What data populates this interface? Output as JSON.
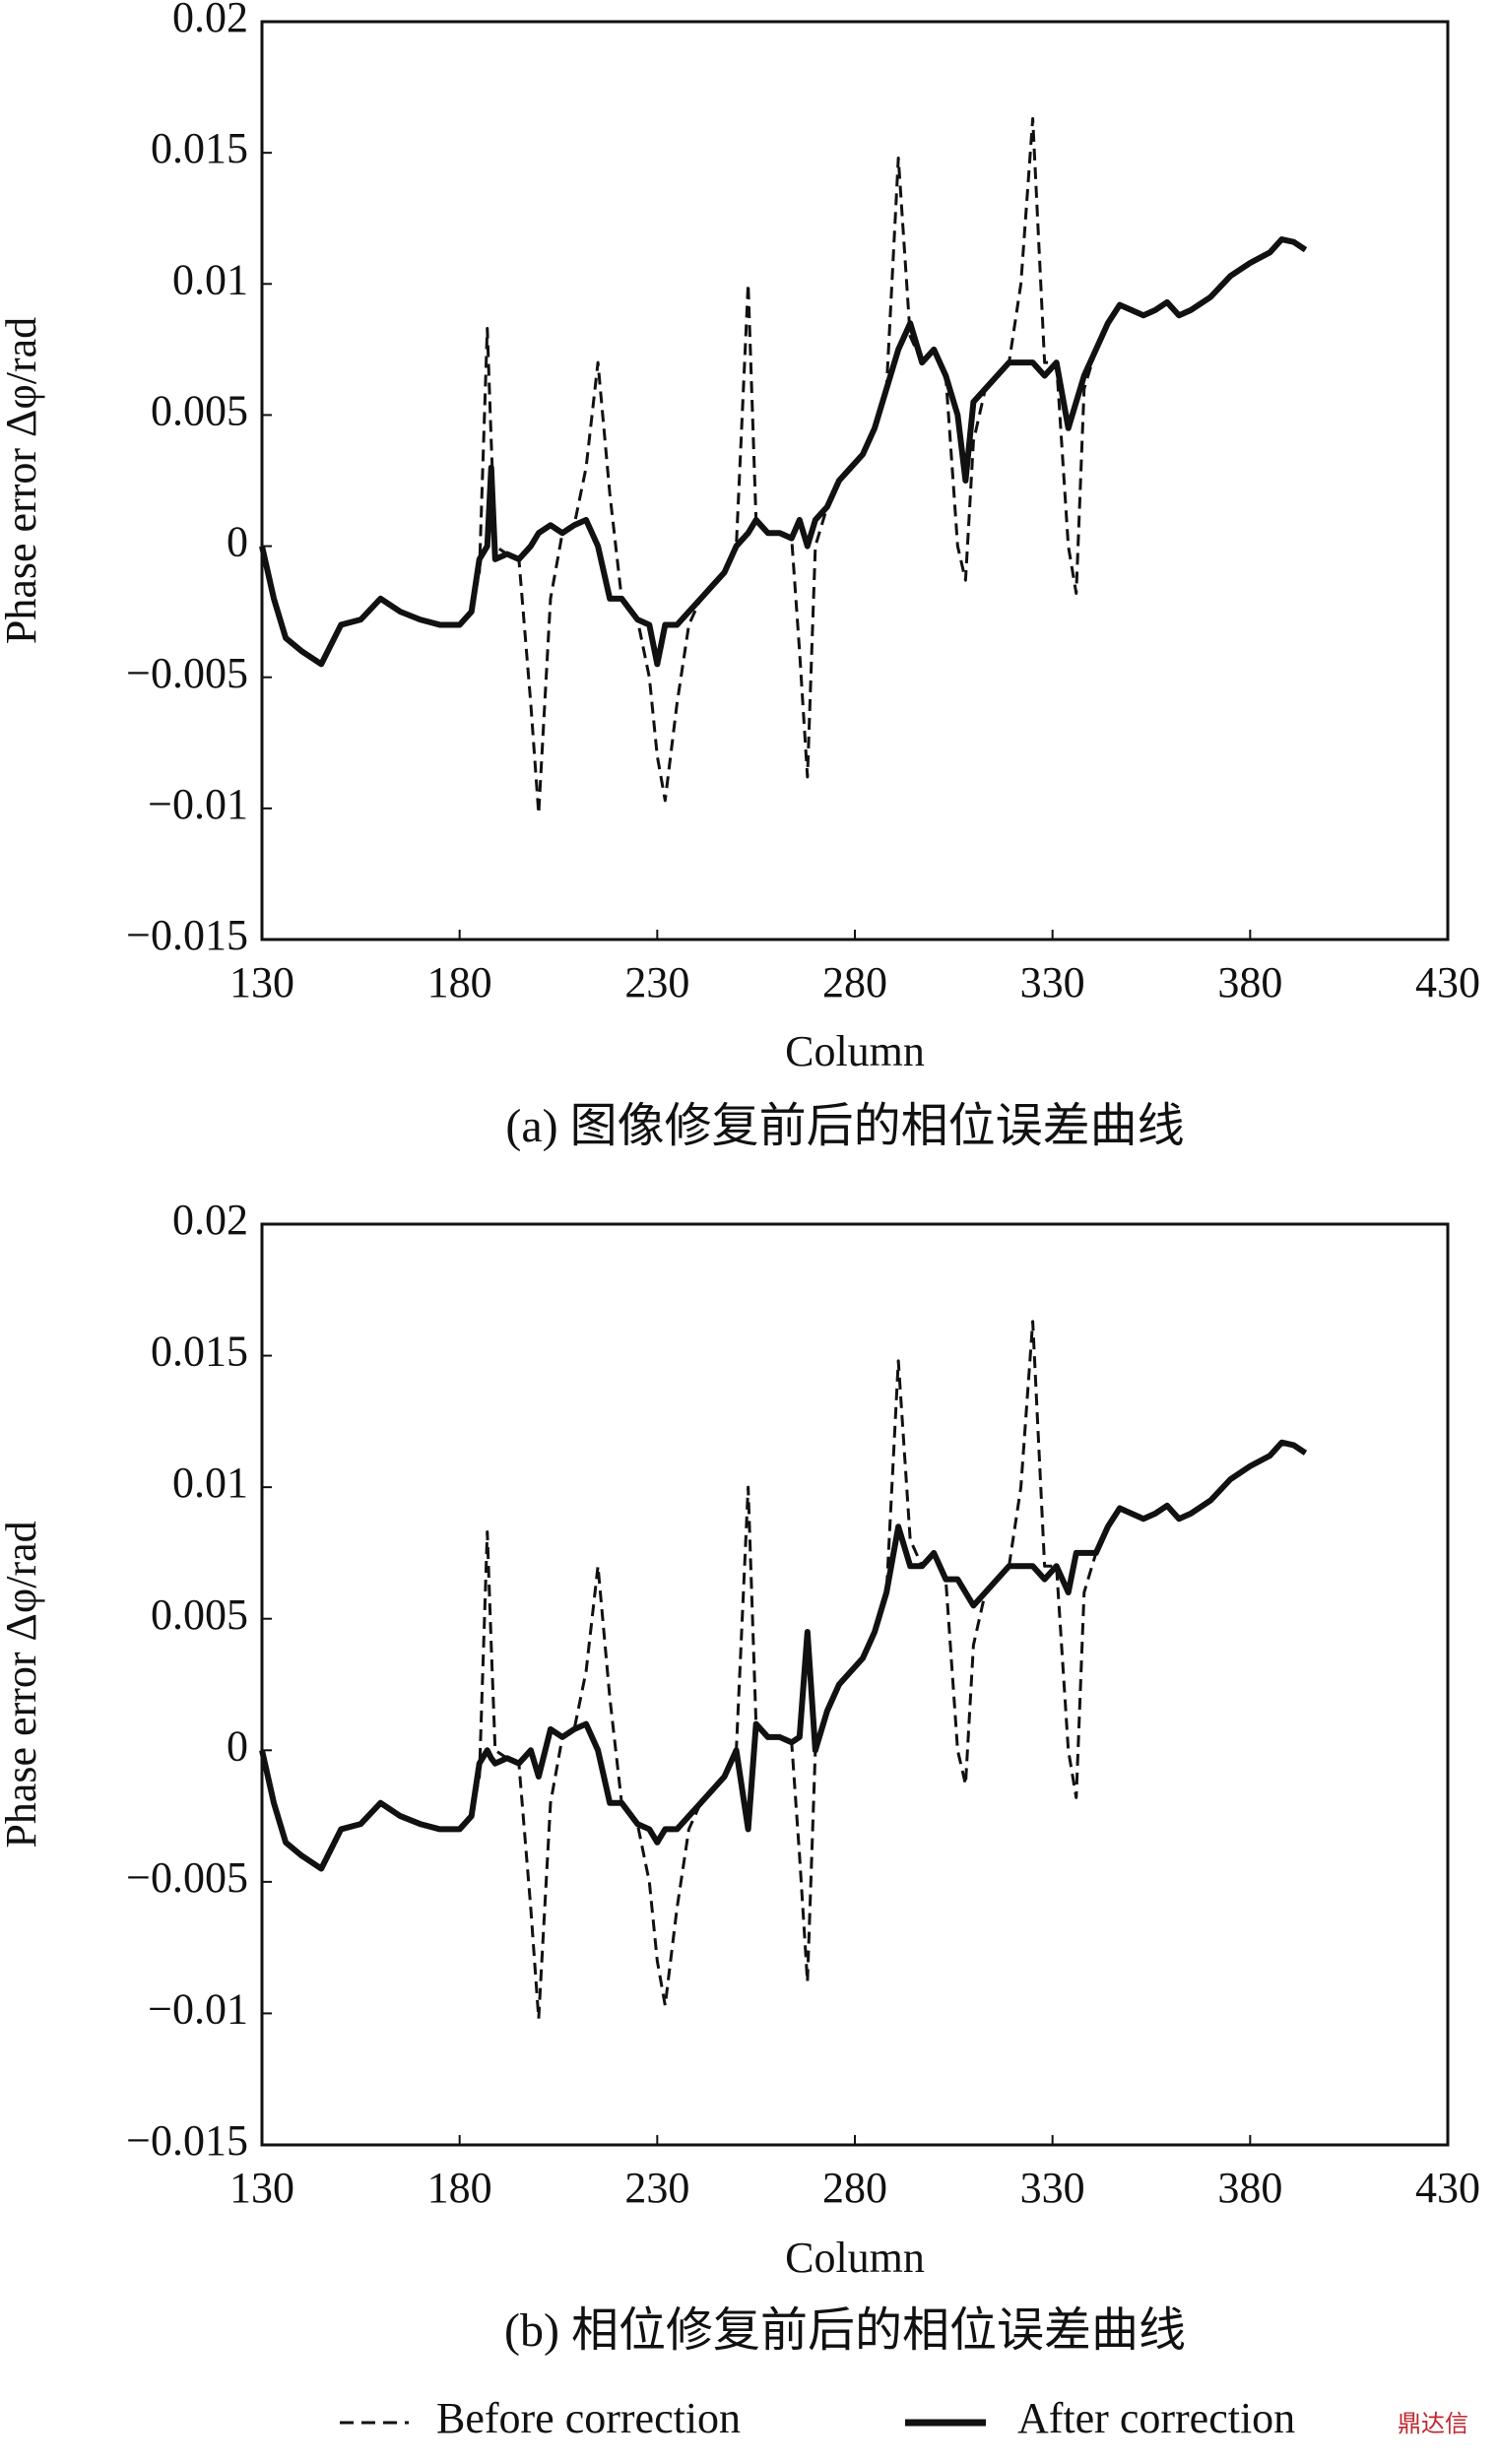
{
  "chart_data": [
    {
      "type": "line",
      "caption": "(a) 图像修复前后的相位误差曲线",
      "xlabel": "Column",
      "ylabel": "Phase error Δφ/rad",
      "x": [
        130,
        133,
        136,
        140,
        145,
        150,
        155,
        160,
        165,
        170,
        175,
        180,
        183,
        185,
        187,
        188,
        189,
        192,
        195,
        198,
        200,
        203,
        206,
        209,
        212,
        215,
        218,
        221,
        225,
        228,
        230,
        232,
        235,
        238,
        241,
        244,
        247,
        250,
        253,
        255,
        258,
        261,
        264,
        266,
        268,
        270,
        273,
        276,
        279,
        282,
        285,
        288,
        291,
        294,
        297,
        300,
        303,
        306,
        308,
        310,
        313,
        316,
        319,
        322,
        325,
        328,
        331,
        334,
        336,
        338,
        341,
        344,
        347,
        350,
        353,
        356,
        359,
        362,
        365,
        370,
        375,
        380,
        385,
        388,
        391,
        394
      ],
      "series": [
        {
          "color": "#111111",
          "dash": true,
          "values": [
            0,
            -0.002,
            -0.0035,
            -0.004,
            -0.0045,
            -0.003,
            -0.0028,
            -0.002,
            -0.0025,
            -0.0028,
            -0.003,
            -0.003,
            -0.0025,
            -0.001,
            0.0083,
            0.004,
            0,
            -0.0003,
            -0.0005,
            -0.006,
            -0.0102,
            -0.002,
            0.0005,
            0.0008,
            0.003,
            0.007,
            0.002,
            -0.002,
            -0.0028,
            -0.005,
            -0.008,
            -0.0097,
            -0.006,
            -0.003,
            -0.002,
            -0.0015,
            -0.001,
            0,
            0.01,
            0.001,
            0.0005,
            0.0005,
            0.0003,
            -0.004,
            -0.0088,
            0,
            0.0015,
            0.0025,
            0.003,
            0.0035,
            0.0045,
            0.006,
            0.0148,
            0.008,
            0.007,
            0.0075,
            0.0065,
            0,
            -0.0013,
            0.004,
            0.006,
            0.0065,
            0.007,
            0.01,
            0.0163,
            0.007,
            0.007,
            0,
            -0.0018,
            0.006,
            0.0075,
            0.0085,
            0.0092,
            0.009,
            0.0088,
            0.009,
            0.0093,
            0.0088,
            0.009,
            0.0095,
            0.0103,
            0.0108,
            0.0112,
            0.0117,
            0.0116,
            0.0113
          ]
        },
        {
          "color": "#111111",
          "dash": false,
          "values": [
            0,
            -0.002,
            -0.0035,
            -0.004,
            -0.0045,
            -0.003,
            -0.0028,
            -0.002,
            -0.0025,
            -0.0028,
            -0.003,
            -0.003,
            -0.0025,
            -0.0005,
            0,
            0.003,
            -0.0005,
            -0.0003,
            -0.0005,
            0,
            0.0005,
            0.0008,
            0.0005,
            0.0008,
            0.001,
            0,
            -0.002,
            -0.002,
            -0.0028,
            -0.003,
            -0.0045,
            -0.003,
            -0.003,
            -0.0025,
            -0.002,
            -0.0015,
            -0.001,
            0,
            0.0005,
            0.001,
            0.0005,
            0.0005,
            0.0003,
            0.001,
            0,
            0.001,
            0.0015,
            0.0025,
            0.003,
            0.0035,
            0.0045,
            0.006,
            0.0075,
            0.0085,
            0.007,
            0.0075,
            0.0065,
            0.005,
            0.0025,
            0.0055,
            0.006,
            0.0065,
            0.007,
            0.007,
            0.007,
            0.0065,
            0.007,
            0.0045,
            0.0055,
            0.0065,
            0.0075,
            0.0085,
            0.0092,
            0.009,
            0.0088,
            0.009,
            0.0093,
            0.0088,
            0.009,
            0.0095,
            0.0103,
            0.0108,
            0.0112,
            0.0117,
            0.0116,
            0.0113
          ]
        }
      ],
      "xlim": [
        130,
        430
      ],
      "xticks": [
        130,
        180,
        230,
        280,
        330,
        380,
        430
      ],
      "ylim": [
        -0.015,
        0.02
      ],
      "yticks": [
        {
          "value": -0.015,
          "label": "−0.015"
        },
        {
          "value": -0.01,
          "label": "−0.01"
        },
        {
          "value": -0.005,
          "label": "−0.005"
        },
        0,
        0.005,
        0.01,
        0.015,
        0.02
      ],
      "grid": false
    },
    {
      "type": "line",
      "caption": "(b) 相位修复前后的相位误差曲线",
      "xlabel": "Column",
      "ylabel": "Phase error Δφ/rad",
      "x": [
        130,
        133,
        136,
        140,
        145,
        150,
        155,
        160,
        165,
        170,
        175,
        180,
        183,
        185,
        187,
        188,
        189,
        192,
        195,
        198,
        200,
        203,
        206,
        209,
        212,
        215,
        218,
        221,
        225,
        228,
        230,
        232,
        235,
        238,
        241,
        244,
        247,
        250,
        253,
        255,
        258,
        261,
        264,
        266,
        268,
        270,
        273,
        276,
        279,
        282,
        285,
        288,
        291,
        294,
        297,
        300,
        303,
        306,
        308,
        310,
        313,
        316,
        319,
        322,
        325,
        328,
        331,
        334,
        336,
        338,
        341,
        344,
        347,
        350,
        353,
        356,
        359,
        362,
        365,
        370,
        375,
        380,
        385,
        388,
        391,
        394
      ],
      "series": [
        {
          "name": "Before correction",
          "color": "#111111",
          "dash": true,
          "values": [
            0,
            -0.002,
            -0.0035,
            -0.004,
            -0.0045,
            -0.003,
            -0.0028,
            -0.002,
            -0.0025,
            -0.0028,
            -0.003,
            -0.003,
            -0.0025,
            -0.001,
            0.0083,
            0.004,
            0,
            -0.0003,
            -0.0005,
            -0.006,
            -0.0102,
            -0.002,
            0.0005,
            0.0008,
            0.003,
            0.007,
            0.002,
            -0.002,
            -0.0028,
            -0.005,
            -0.008,
            -0.0097,
            -0.006,
            -0.003,
            -0.002,
            -0.0015,
            -0.001,
            0,
            0.01,
            0.001,
            0.0005,
            0.0005,
            0.0003,
            -0.004,
            -0.0088,
            0,
            0.0015,
            0.0025,
            0.003,
            0.0035,
            0.0045,
            0.006,
            0.0148,
            0.008,
            0.007,
            0.0075,
            0.0065,
            0,
            -0.0013,
            0.004,
            0.006,
            0.0065,
            0.007,
            0.01,
            0.0163,
            0.007,
            0.007,
            0,
            -0.0018,
            0.006,
            0.0075,
            0.0085,
            0.0092,
            0.009,
            0.0088,
            0.009,
            0.0093,
            0.0088,
            0.009,
            0.0095,
            0.0103,
            0.0108,
            0.0112,
            0.0117,
            0.0116,
            0.0113
          ]
        },
        {
          "name": "After correction",
          "color": "#111111",
          "dash": false,
          "values": [
            0,
            -0.002,
            -0.0035,
            -0.004,
            -0.0045,
            -0.003,
            -0.0028,
            -0.002,
            -0.0025,
            -0.0028,
            -0.003,
            -0.003,
            -0.0025,
            -0.0005,
            0,
            -0.0003,
            -0.0005,
            -0.0003,
            -0.0005,
            0,
            -0.001,
            0.0008,
            0.0005,
            0.0008,
            0.001,
            0,
            -0.002,
            -0.002,
            -0.0028,
            -0.003,
            -0.0035,
            -0.003,
            -0.003,
            -0.0025,
            -0.002,
            -0.0015,
            -0.001,
            0,
            -0.003,
            0.001,
            0.0005,
            0.0005,
            0.0003,
            0.0005,
            0.0045,
            0,
            0.0015,
            0.0025,
            0.003,
            0.0035,
            0.0045,
            0.006,
            0.0085,
            0.007,
            0.007,
            0.0075,
            0.0065,
            0.0065,
            0.006,
            0.0055,
            0.006,
            0.0065,
            0.007,
            0.007,
            0.007,
            0.0065,
            0.007,
            0.006,
            0.0075,
            0.0075,
            0.0075,
            0.0085,
            0.0092,
            0.009,
            0.0088,
            0.009,
            0.0093,
            0.0088,
            0.009,
            0.0095,
            0.0103,
            0.0108,
            0.0112,
            0.0117,
            0.0116,
            0.0113
          ]
        }
      ],
      "xlim": [
        130,
        430
      ],
      "xticks": [
        130,
        180,
        230,
        280,
        330,
        380,
        430
      ],
      "ylim": [
        -0.015,
        0.02
      ],
      "yticks": [
        {
          "value": -0.015,
          "label": "−0.015"
        },
        {
          "value": -0.01,
          "label": "−0.01"
        },
        {
          "value": -0.005,
          "label": "−0.005"
        },
        0,
        0.005,
        0.01,
        0.015,
        0.02
      ],
      "grid": false
    }
  ],
  "watermark": "鼎达信"
}
